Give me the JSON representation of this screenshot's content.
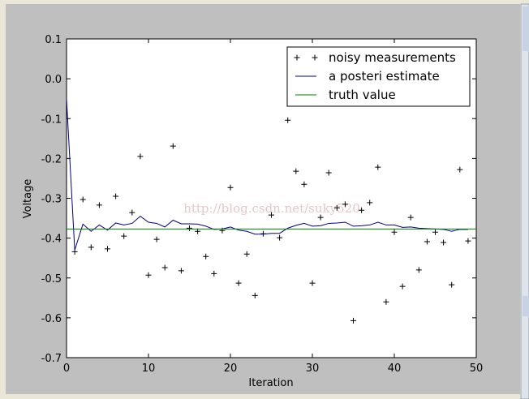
{
  "chart_data": {
    "type": "line",
    "xlabel": "Iteration",
    "ylabel": "Voltage",
    "watermark": "http://blog.csdn.net/suky520",
    "xlim": [
      0,
      50
    ],
    "ylim": [
      -0.7,
      0.1
    ],
    "xticks": [
      0,
      10,
      20,
      30,
      40,
      50
    ],
    "yticks": [
      0.1,
      {
        "value": 0,
        "label": "0.0"
      },
      -0.1,
      -0.2,
      -0.3,
      -0.4,
      -0.5,
      -0.6,
      -0.7
    ],
    "legend": "upper right",
    "series": [
      {
        "name": "noisy measurements",
        "color": "#000000",
        "marker": "+",
        "linestyle": "none",
        "x": [
          1,
          2,
          3,
          4,
          5,
          6,
          7,
          8,
          9,
          10,
          11,
          12,
          13,
          14,
          15,
          16,
          17,
          18,
          19,
          20,
          21,
          22,
          23,
          24,
          25,
          26,
          27,
          28,
          29,
          30,
          31,
          32,
          33,
          34,
          35,
          36,
          37,
          38,
          39,
          40,
          41,
          42,
          43,
          44,
          45,
          46,
          47,
          48,
          49
        ],
        "values": [
          -0.434,
          -0.303,
          -0.423,
          -0.317,
          -0.427,
          -0.295,
          -0.395,
          -0.336,
          -0.195,
          -0.493,
          -0.403,
          -0.474,
          -0.169,
          -0.482,
          -0.375,
          -0.383,
          -0.446,
          -0.489,
          -0.381,
          -0.273,
          -0.513,
          -0.44,
          -0.544,
          -0.389,
          -0.342,
          -0.399,
          -0.104,
          -0.232,
          -0.265,
          -0.513,
          -0.348,
          -0.236,
          -0.324,
          -0.315,
          -0.607,
          -0.33,
          -0.311,
          -0.222,
          -0.56,
          -0.385,
          -0.521,
          -0.348,
          -0.48,
          -0.409,
          -0.385,
          -0.411,
          -0.517,
          -0.228,
          -0.407
        ]
      },
      {
        "name": "a posteri estimate",
        "color": "#00008b",
        "linestyle": "solid",
        "x": [
          0,
          1,
          2,
          3,
          4,
          5,
          6,
          7,
          8,
          9,
          10,
          11,
          12,
          13,
          14,
          15,
          16,
          17,
          18,
          19,
          20,
          21,
          22,
          23,
          24,
          25,
          26,
          27,
          28,
          29,
          30,
          31,
          32,
          33,
          34,
          35,
          36,
          37,
          38,
          39,
          40,
          41,
          42,
          43,
          44,
          45,
          46,
          47,
          48,
          49
        ],
        "values": [
          -0.05,
          -0.43,
          -0.365,
          -0.383,
          -0.367,
          -0.38,
          -0.362,
          -0.367,
          -0.363,
          -0.345,
          -0.36,
          -0.363,
          -0.372,
          -0.355,
          -0.364,
          -0.364,
          -0.365,
          -0.37,
          -0.378,
          -0.377,
          -0.372,
          -0.38,
          -0.383,
          -0.39,
          -0.39,
          -0.388,
          -0.388,
          -0.375,
          -0.368,
          -0.363,
          -0.37,
          -0.369,
          -0.363,
          -0.362,
          -0.36,
          -0.37,
          -0.369,
          -0.367,
          -0.36,
          -0.367,
          -0.367,
          -0.373,
          -0.372,
          -0.375,
          -0.376,
          -0.377,
          -0.378,
          -0.383,
          -0.378,
          -0.378
        ]
      },
      {
        "name": "truth value",
        "color": "#007f00",
        "linestyle": "solid",
        "x": [
          0,
          50
        ],
        "values": [
          -0.377,
          -0.377
        ]
      }
    ]
  }
}
